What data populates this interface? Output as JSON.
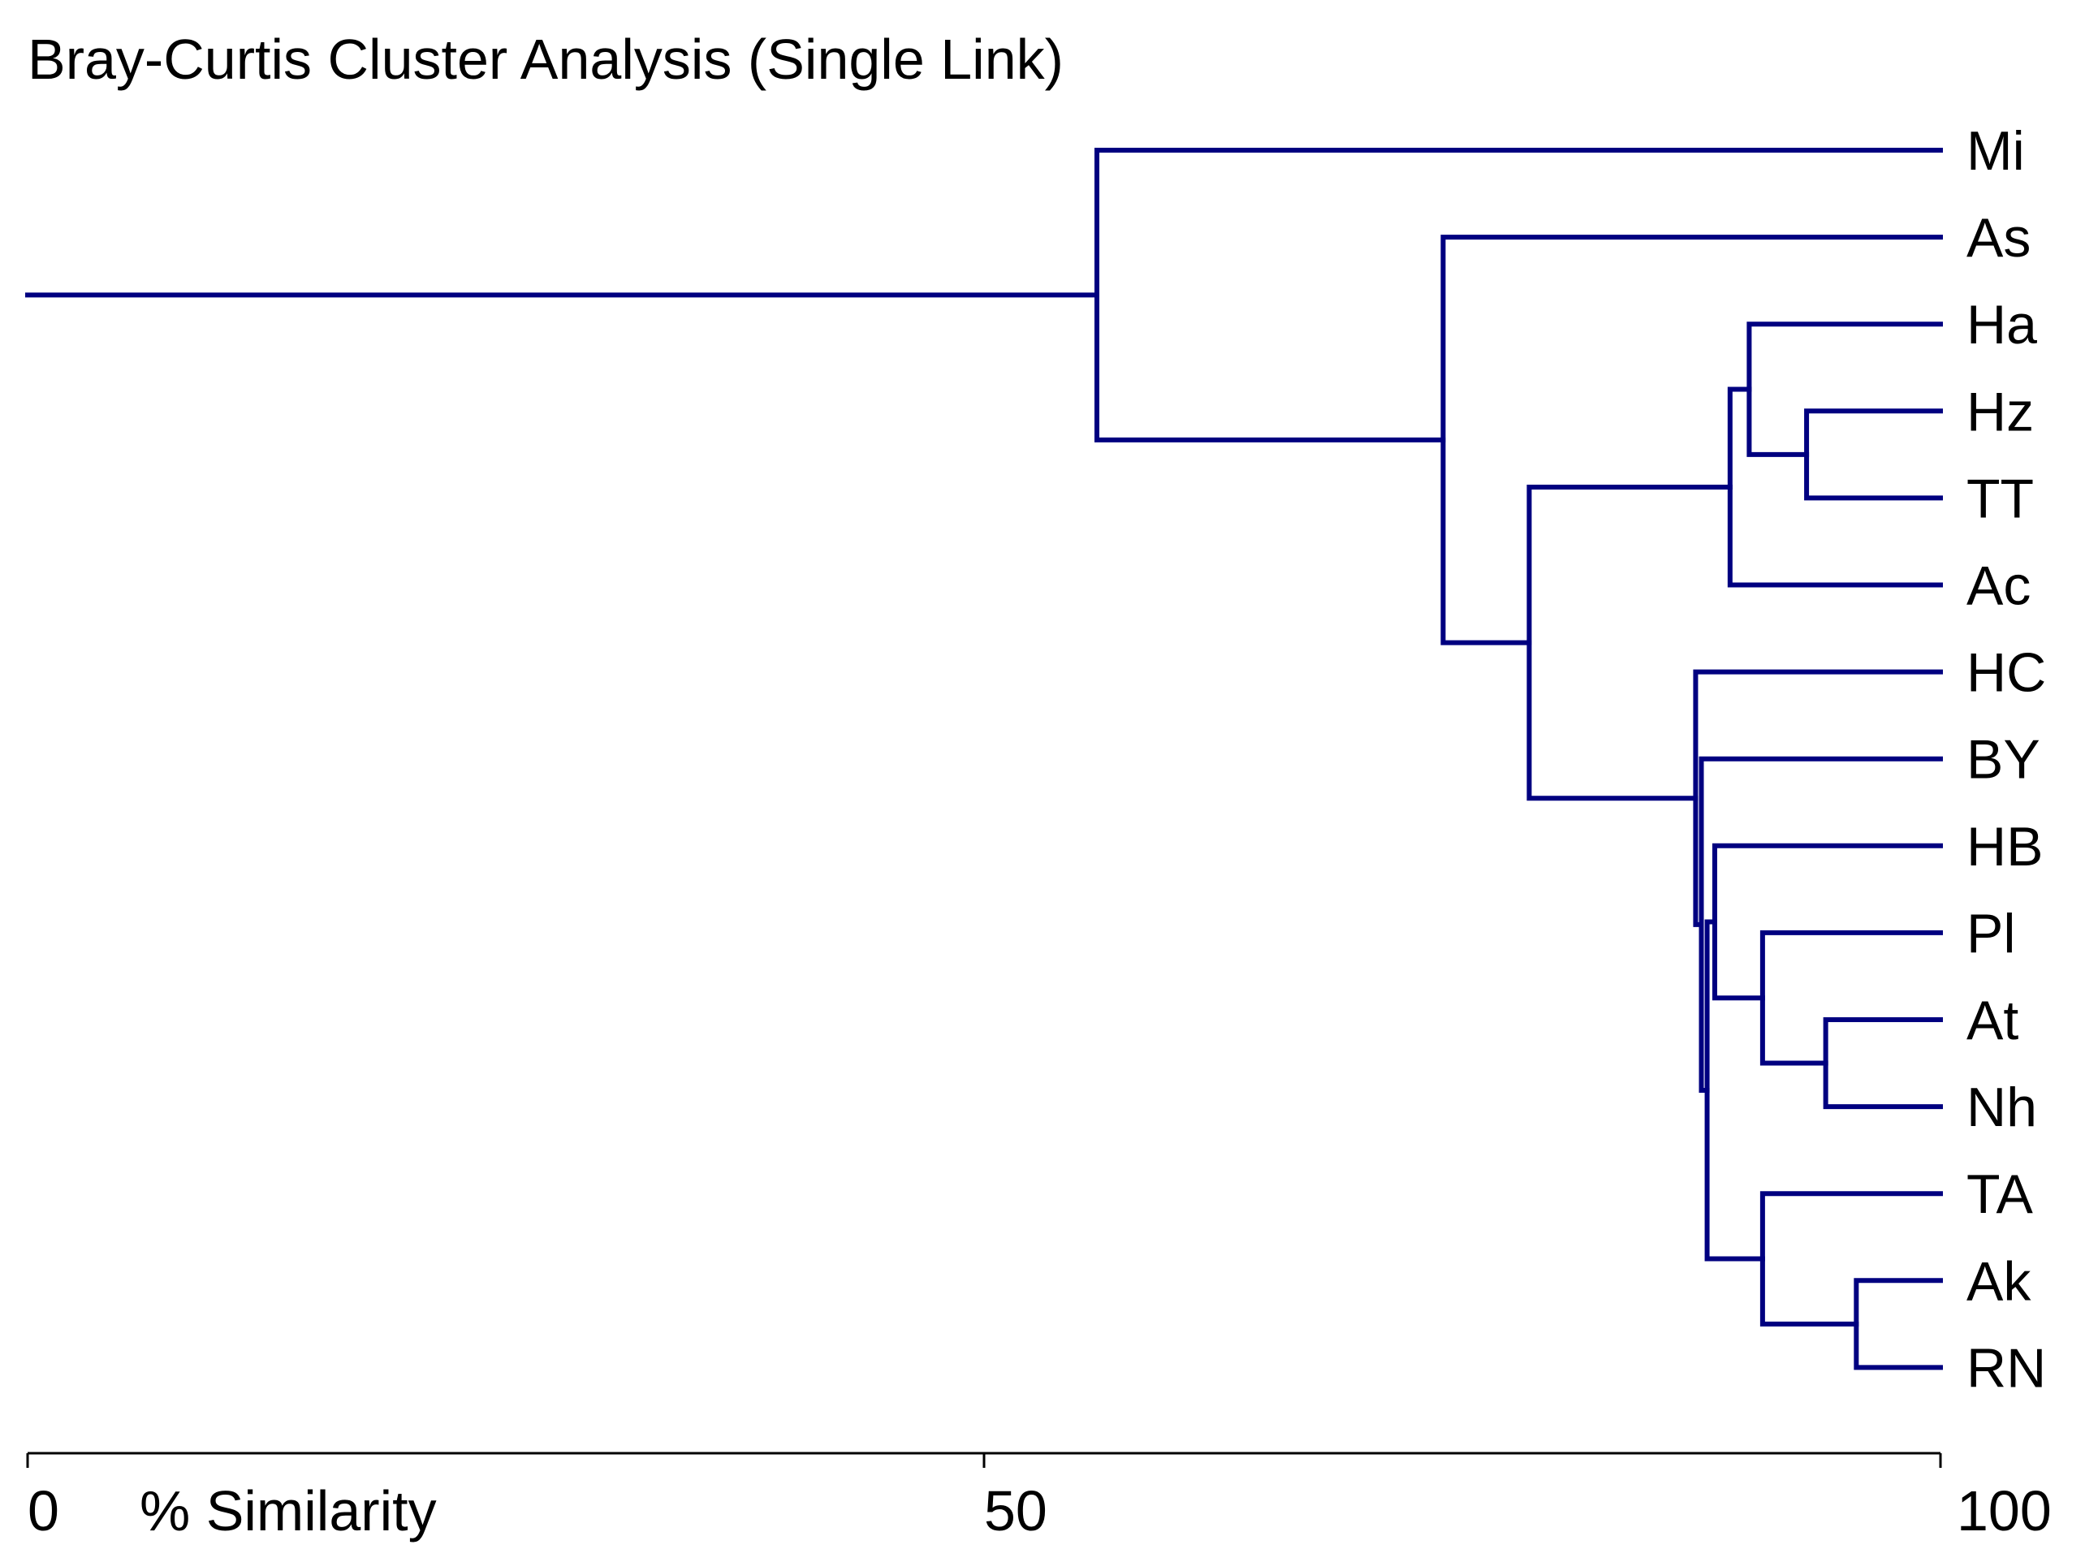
{
  "chart_data": {
    "type": "dendrogram",
    "title": "Bray-Curtis Cluster Analysis (Single Link)",
    "xlabel": "% Similarity",
    "xlim": [
      0,
      100
    ],
    "ticks": [
      0,
      50,
      100
    ],
    "line_color": "#000080",
    "leaves": [
      "Mi",
      "As",
      "Ha",
      "Hz",
      "TT",
      "Ac",
      "HC",
      "BY",
      "HB",
      "Pl",
      "At",
      "Nh",
      "TA",
      "Ak",
      "RN"
    ],
    "merges": [
      {
        "id": "c1",
        "children": [
          "Hz",
          "TT"
        ],
        "similarity": 93.0
      },
      {
        "id": "c2",
        "children": [
          "Ha",
          "c1"
        ],
        "similarity": 90.0
      },
      {
        "id": "c3",
        "children": [
          "c2",
          "Ac"
        ],
        "similarity": 89.0
      },
      {
        "id": "c4",
        "children": [
          "At",
          "Nh"
        ],
        "similarity": 94.0
      },
      {
        "id": "c5",
        "children": [
          "Pl",
          "c4"
        ],
        "similarity": 90.7
      },
      {
        "id": "c6",
        "children": [
          "HB",
          "c5"
        ],
        "similarity": 88.2
      },
      {
        "id": "c7",
        "children": [
          "Ak",
          "RN"
        ],
        "similarity": 95.6
      },
      {
        "id": "c8",
        "children": [
          "TA",
          "c7"
        ],
        "similarity": 90.7
      },
      {
        "id": "c9",
        "children": [
          "c6",
          "c8"
        ],
        "similarity": 87.8
      },
      {
        "id": "c10",
        "children": [
          "BY",
          "c9"
        ],
        "similarity": 87.5
      },
      {
        "id": "c11",
        "children": [
          "HC",
          "c10"
        ],
        "similarity": 87.2
      },
      {
        "id": "c12",
        "children": [
          "c3",
          "c11"
        ],
        "similarity": 78.5
      },
      {
        "id": "c13",
        "children": [
          "As",
          "c12"
        ],
        "similarity": 74.0
      },
      {
        "id": "c14",
        "children": [
          "Mi",
          "c13"
        ],
        "similarity": 55.9
      }
    ],
    "root_stem_similarity": 0
  }
}
